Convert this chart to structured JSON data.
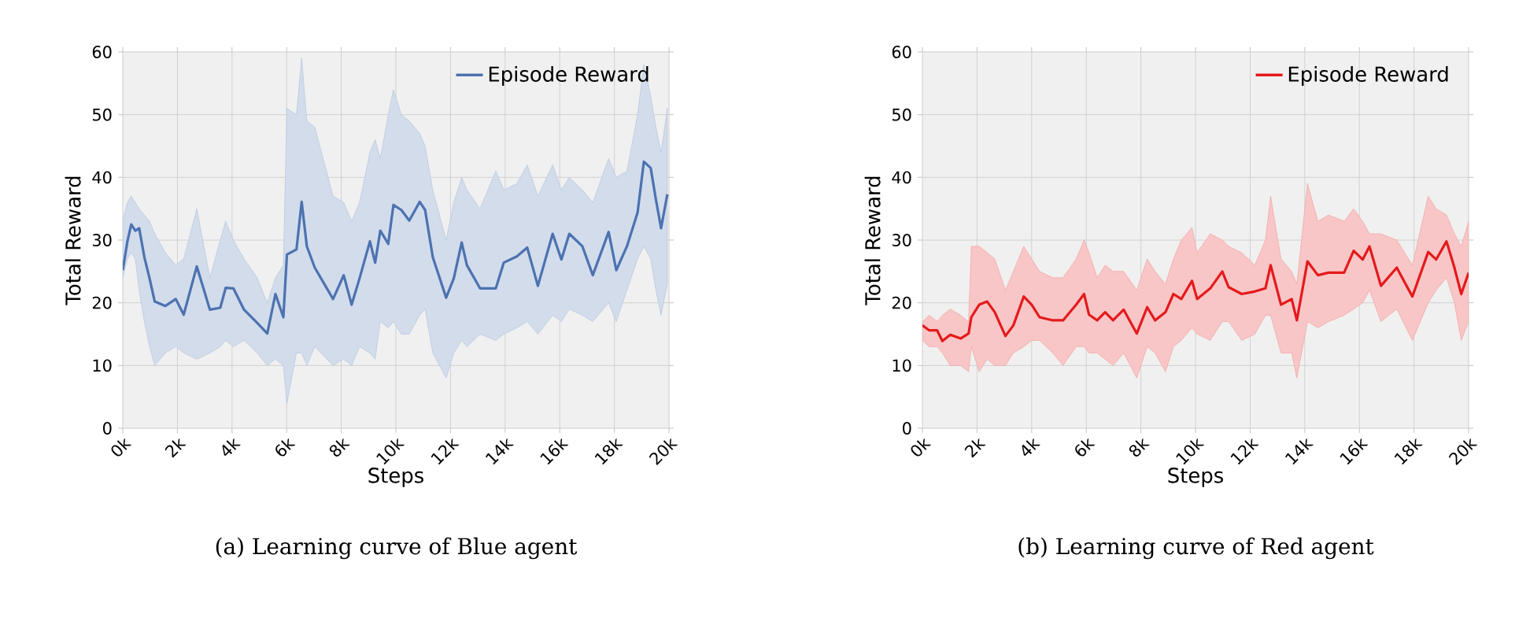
{
  "chart_data": [
    {
      "type": "line",
      "xlabel": "Steps",
      "ylabel": "Total Reward",
      "xlim": [
        0,
        20000
      ],
      "ylim": [
        0,
        60
      ],
      "xticks": [
        {
          "value": 0,
          "label": "0k"
        },
        {
          "value": 2000,
          "label": "2k"
        },
        {
          "value": 4000,
          "label": "4k"
        },
        {
          "value": 6000,
          "label": "6k"
        },
        {
          "value": 8000,
          "label": "8k"
        },
        {
          "value": 10000,
          "label": "10k"
        },
        {
          "value": 12000,
          "label": "12k"
        },
        {
          "value": 14000,
          "label": "14k"
        },
        {
          "value": 16000,
          "label": "16k"
        },
        {
          "value": 18000,
          "label": "18k"
        },
        {
          "value": 20000,
          "label": "20k"
        }
      ],
      "yticks": [
        0,
        10,
        20,
        30,
        40,
        50,
        60
      ],
      "grid": true,
      "legend": "top right",
      "annotations": [
        "(a) Learning curve of Blue agent"
      ],
      "series": [
        {
          "name": "Episode Reward",
          "color": "#4c72b0",
          "x": [
            0,
            170,
            310,
            460,
            600,
            790,
            980,
            1170,
            1560,
            1940,
            2230,
            2710,
            3190,
            3570,
            3770,
            4050,
            4440,
            4920,
            5290,
            5590,
            5880,
            6010,
            6360,
            6550,
            6740,
            7030,
            7700,
            8090,
            8380,
            8670,
            9050,
            9240,
            9430,
            9720,
            9910,
            10200,
            10490,
            10870,
            11070,
            11350,
            11840,
            12120,
            12410,
            12600,
            13080,
            13660,
            13950,
            14430,
            14810,
            15200,
            15740,
            16060,
            16350,
            16830,
            17210,
            17790,
            18070,
            18460,
            18850,
            19080,
            19330,
            19520,
            19710,
            19940
          ],
          "values": [
            25.2,
            29.8,
            32.5,
            31.5,
            31.9,
            27.3,
            23.9,
            20.2,
            19.5,
            20.6,
            18.1,
            25.8,
            18.9,
            19.2,
            22.4,
            22.3,
            18.9,
            16.8,
            15.1,
            21.4,
            17.7,
            27.7,
            28.5,
            36.1,
            29.0,
            25.6,
            20.6,
            24.4,
            19.7,
            23.9,
            29.8,
            26.4,
            31.5,
            29.4,
            35.6,
            34.8,
            33.1,
            36.1,
            34.8,
            27.3,
            20.8,
            23.9,
            29.6,
            26.0,
            22.3,
            22.3,
            26.4,
            27.4,
            28.8,
            22.7,
            31.0,
            26.9,
            31.0,
            29.0,
            24.4,
            31.3,
            25.2,
            29.0,
            34.4,
            42.5,
            41.5,
            36.5,
            31.9,
            37.3
          ],
          "upper": [
            33,
            36,
            37,
            36,
            35,
            34,
            33,
            31,
            28,
            26,
            27,
            35,
            24,
            30,
            33,
            30,
            27,
            24,
            20,
            24,
            26,
            51,
            50,
            59,
            49,
            48,
            37,
            36,
            33,
            36,
            44,
            46,
            43,
            50,
            54,
            50,
            49,
            47,
            45,
            38,
            30,
            36,
            40,
            38,
            35,
            41,
            38,
            39,
            42,
            37,
            42,
            38,
            40,
            38,
            36,
            43,
            40,
            41,
            50,
            58,
            53,
            48,
            44,
            51
          ],
          "lower": [
            24,
            27,
            28,
            27,
            22,
            17,
            13,
            10,
            12,
            13,
            12,
            11,
            12,
            13,
            14,
            13,
            14,
            12,
            10,
            11,
            10,
            4,
            12,
            12,
            10,
            13,
            10,
            11,
            10,
            13,
            12,
            11,
            17,
            16,
            17,
            15,
            15,
            18,
            19,
            12,
            8,
            12,
            14,
            13,
            15,
            14,
            15,
            16,
            17,
            15,
            18,
            17,
            19,
            18,
            17,
            20,
            17,
            22,
            27,
            29,
            27,
            22,
            18,
            23
          ]
        }
      ]
    },
    {
      "type": "line",
      "xlabel": "Steps",
      "ylabel": "Total Reward",
      "xlim": [
        0,
        20000
      ],
      "ylim": [
        0,
        60
      ],
      "xticks": [
        {
          "value": 0,
          "label": "0k"
        },
        {
          "value": 2000,
          "label": "2k"
        },
        {
          "value": 4000,
          "label": "4k"
        },
        {
          "value": 6000,
          "label": "6k"
        },
        {
          "value": 8000,
          "label": "8k"
        },
        {
          "value": 10000,
          "label": "10k"
        },
        {
          "value": 12000,
          "label": "12k"
        },
        {
          "value": 14000,
          "label": "14k"
        },
        {
          "value": 16000,
          "label": "16k"
        },
        {
          "value": 18000,
          "label": "18k"
        },
        {
          "value": 20000,
          "label": "20k"
        }
      ],
      "yticks": [
        0,
        10,
        20,
        30,
        40,
        50,
        60
      ],
      "grid": true,
      "legend": "top right",
      "annotations": [
        "(b) Learning curve of Red agent"
      ],
      "series": [
        {
          "name": "Episode Reward",
          "color": "#e41a1c",
          "x": [
            0,
            250,
            540,
            730,
            1020,
            1400,
            1690,
            1790,
            2080,
            2370,
            2650,
            3040,
            3330,
            3710,
            4000,
            4290,
            4770,
            5150,
            5630,
            5920,
            6100,
            6400,
            6690,
            6980,
            7370,
            7850,
            8230,
            8520,
            8900,
            9190,
            9480,
            9870,
            10060,
            10540,
            10980,
            11210,
            11690,
            12170,
            12560,
            12750,
            13130,
            13520,
            13710,
            14100,
            14480,
            14870,
            15440,
            15790,
            16120,
            16370,
            16790,
            17370,
            17940,
            18520,
            18810,
            19190,
            19480,
            19730,
            20000
          ],
          "values": [
            16.4,
            15.6,
            15.6,
            13.9,
            14.9,
            14.3,
            15.1,
            17.7,
            19.7,
            20.2,
            18.5,
            14.7,
            16.4,
            21.0,
            19.7,
            17.7,
            17.2,
            17.2,
            19.7,
            21.4,
            18.1,
            17.2,
            18.5,
            17.2,
            18.9,
            15.1,
            19.3,
            17.2,
            18.5,
            21.4,
            20.6,
            23.5,
            20.6,
            22.3,
            25.0,
            22.5,
            21.4,
            21.8,
            22.3,
            26.0,
            19.7,
            20.6,
            17.2,
            26.6,
            24.4,
            24.8,
            24.8,
            28.3,
            26.9,
            29.0,
            22.7,
            25.6,
            21.0,
            28.1,
            26.9,
            29.8,
            25.6,
            21.4,
            24.8
          ],
          "upper": [
            17,
            18,
            17,
            18,
            19,
            18,
            17,
            29,
            29,
            28,
            27,
            22,
            25,
            29,
            27,
            25,
            24,
            24,
            27,
            30,
            28,
            24,
            26,
            25,
            25,
            22,
            27,
            25,
            23,
            27,
            30,
            32,
            28,
            31,
            30,
            29,
            28,
            26,
            30,
            37,
            27,
            25,
            23,
            39,
            33,
            34,
            33,
            35,
            33,
            31,
            31,
            30,
            26,
            37,
            35,
            34,
            31,
            29,
            33
          ],
          "lower": [
            14,
            13,
            13,
            12,
            10,
            10,
            9,
            13,
            9,
            11,
            10,
            10,
            12,
            13,
            14,
            14,
            12,
            10,
            13,
            13,
            12,
            12,
            11,
            10,
            12,
            8,
            13,
            12,
            9,
            13,
            14,
            16,
            15,
            14,
            17,
            17,
            14,
            15,
            18,
            18,
            12,
            12,
            8,
            17,
            16,
            17,
            18,
            19,
            20,
            22,
            17,
            19,
            14,
            20,
            22,
            24,
            20,
            14,
            17
          ]
        }
      ]
    }
  ]
}
